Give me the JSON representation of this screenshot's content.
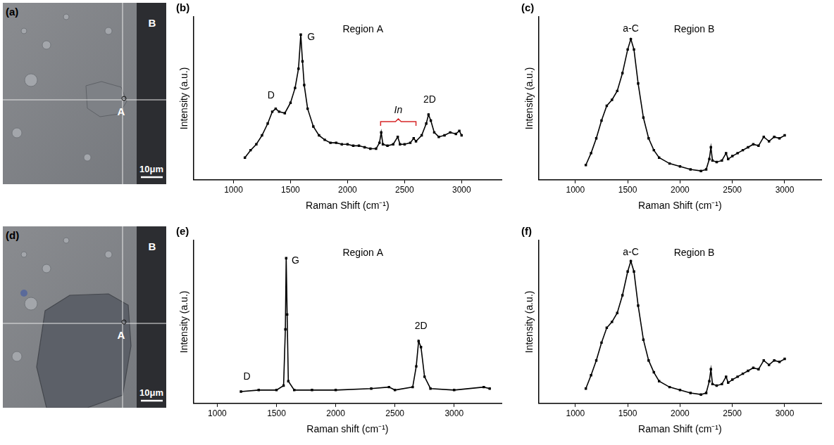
{
  "chart_data": [
    {
      "type": "line",
      "panel_label": "(b)",
      "title": "Region A",
      "x_label": "Raman Shift (cm⁻¹)",
      "y_label": "Intensity (a.u.)",
      "x": [
        1100,
        1150,
        1200,
        1250,
        1300,
        1340,
        1370,
        1400,
        1450,
        1500,
        1540,
        1570,
        1590,
        1605,
        1620,
        1650,
        1700,
        1750,
        1800,
        1850,
        1900,
        1950,
        2000,
        2050,
        2100,
        2150,
        2200,
        2250,
        2280,
        2295,
        2310,
        2350,
        2400,
        2440,
        2460,
        2500,
        2550,
        2580,
        2600,
        2650,
        2690,
        2710,
        2730,
        2760,
        2800,
        2850,
        2900,
        2950,
        2980,
        3000
      ],
      "values": [
        1.5,
        2.0,
        2.4,
        3.0,
        3.8,
        4.6,
        4.8,
        4.6,
        4.5,
        5.2,
        6.2,
        7.5,
        9.8,
        8.0,
        6.4,
        4.8,
        3.6,
        3.0,
        2.7,
        2.5,
        2.5,
        2.4,
        2.4,
        2.3,
        2.3,
        2.2,
        2.1,
        2.1,
        2.5,
        3.2,
        2.4,
        2.3,
        2.4,
        2.9,
        2.4,
        2.4,
        2.5,
        2.8,
        2.6,
        3.0,
        3.8,
        4.4,
        4.0,
        3.2,
        2.9,
        3.0,
        3.2,
        3.1,
        3.3,
        3.0
      ],
      "color": "#000000",
      "marker": "square",
      "line_style": "solid",
      "xlim": [
        650,
        3350
      ],
      "xticks": [
        1000,
        1500,
        2000,
        2500,
        3000
      ],
      "ylim": [
        0,
        11
      ],
      "grid": false,
      "tick_labels": "x",
      "annotations": [
        {
          "text": "D",
          "x": 1330,
          "y": 5.7
        },
        {
          "text": "G",
          "x": 1680,
          "y": 9.6
        },
        {
          "text": "In",
          "x": 2445,
          "y": 4.5,
          "bracket": [
            2290,
            2600
          ],
          "color": "#d62728"
        },
        {
          "text": "2D",
          "x": 2720,
          "y": 5.4
        }
      ]
    },
    {
      "type": "line",
      "panel_label": "(c)",
      "title": "Region B",
      "x_label": "Raman Shift (cm⁻¹)",
      "y_label": "Intensity (a.u.)",
      "x": [
        1100,
        1150,
        1200,
        1250,
        1300,
        1350,
        1400,
        1450,
        1500,
        1530,
        1560,
        1600,
        1650,
        1700,
        1750,
        1800,
        1900,
        2000,
        2100,
        2200,
        2250,
        2280,
        2295,
        2310,
        2350,
        2400,
        2440,
        2460,
        2500,
        2550,
        2600,
        2650,
        2700,
        2750,
        2800,
        2850,
        2900,
        2950,
        3000
      ],
      "values": [
        1.0,
        1.8,
        2.8,
        4.0,
        5.0,
        5.4,
        6.0,
        7.2,
        8.8,
        9.5,
        8.8,
        6.5,
        4.2,
        2.8,
        2.0,
        1.5,
        1.1,
        0.9,
        0.7,
        0.6,
        0.7,
        1.4,
        2.2,
        1.3,
        1.2,
        1.3,
        1.8,
        1.4,
        1.6,
        1.8,
        2.0,
        2.2,
        2.4,
        2.3,
        2.9,
        2.6,
        2.9,
        2.8,
        3.0
      ],
      "color": "#000000",
      "marker": "square",
      "line_style": "solid",
      "xlim": [
        650,
        3350
      ],
      "xticks": [
        1000,
        1500,
        2000,
        2500,
        3000
      ],
      "ylim": [
        0,
        11
      ],
      "grid": false,
      "tick_labels": "x",
      "annotations": [
        {
          "text": "a-C",
          "x": 1530,
          "y": 10.2
        }
      ]
    },
    {
      "type": "line",
      "panel_label": "(e)",
      "title": "Region A",
      "x_label": "Raman shift (cm⁻¹)",
      "y_label": "Intensity (a.u.)",
      "x": [
        1200,
        1350,
        1500,
        1560,
        1575,
        1582,
        1590,
        1600,
        1650,
        1800,
        2000,
        2300,
        2450,
        2500,
        2650,
        2680,
        2700,
        2720,
        2750,
        2800,
        3000,
        3250,
        3300
      ],
      "values": [
        0.8,
        0.9,
        0.9,
        1.2,
        5.0,
        9.8,
        6.0,
        1.5,
        0.9,
        0.9,
        0.9,
        1.0,
        1.1,
        0.9,
        1.1,
        2.5,
        4.2,
        3.8,
        1.8,
        1.0,
        0.9,
        1.1,
        1.0
      ],
      "color": "#000000",
      "marker": "square",
      "line_style": "solid",
      "xlim": [
        800,
        3400
      ],
      "xticks": [
        1000,
        1500,
        2000,
        2500,
        3000
      ],
      "ylim": [
        0,
        11
      ],
      "grid": false,
      "tick_labels": "x",
      "annotations": [
        {
          "text": "D",
          "x": 1250,
          "y": 1.8
        },
        {
          "text": "G",
          "x": 1660,
          "y": 9.6
        },
        {
          "text": "2D",
          "x": 2720,
          "y": 5.2
        }
      ]
    },
    {
      "type": "line",
      "panel_label": "(f)",
      "title": "Region B",
      "x_label": "Raman Shift (cm⁻¹)",
      "y_label": "Intensity (a.u.)",
      "x": [
        1100,
        1150,
        1200,
        1250,
        1300,
        1350,
        1400,
        1450,
        1500,
        1530,
        1560,
        1600,
        1650,
        1700,
        1750,
        1800,
        1900,
        2000,
        2100,
        2200,
        2250,
        2280,
        2295,
        2310,
        2350,
        2400,
        2440,
        2460,
        2500,
        2550,
        2600,
        2650,
        2700,
        2750,
        2800,
        2850,
        2900,
        2950,
        3000
      ],
      "values": [
        1.0,
        1.9,
        2.9,
        4.1,
        5.1,
        5.5,
        6.1,
        7.3,
        8.9,
        9.6,
        8.9,
        6.6,
        4.3,
        2.9,
        2.1,
        1.5,
        1.1,
        0.9,
        0.7,
        0.6,
        0.7,
        1.5,
        2.3,
        1.3,
        1.2,
        1.3,
        1.8,
        1.4,
        1.6,
        1.8,
        2.0,
        2.2,
        2.4,
        2.3,
        2.9,
        2.6,
        2.9,
        2.8,
        3.0
      ],
      "color": "#000000",
      "marker": "square",
      "line_style": "solid",
      "xlim": [
        650,
        3350
      ],
      "xticks": [
        1000,
        1500,
        2000,
        2500,
        3000
      ],
      "ylim": [
        0,
        11
      ],
      "grid": false,
      "tick_labels": "x",
      "annotations": [
        {
          "text": "a-C",
          "x": 1530,
          "y": 10.2
        }
      ]
    }
  ],
  "images": [
    {
      "panel_label": "(a)",
      "labels": [
        "A",
        "B"
      ],
      "scale_bar": "10μm"
    },
    {
      "panel_label": "(d)",
      "labels": [
        "A",
        "B"
      ],
      "scale_bar": "10μm"
    }
  ]
}
